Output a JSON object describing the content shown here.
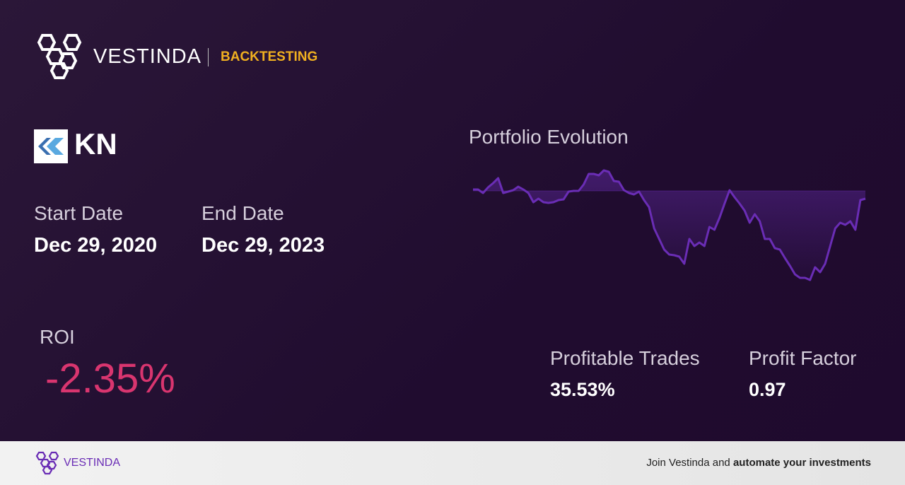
{
  "header": {
    "brand": "VESTINDA",
    "section": "BACKTESTING"
  },
  "ticker": "KN",
  "start_date": {
    "label": "Start Date",
    "value": "Dec 29, 2020"
  },
  "end_date": {
    "label": "End Date",
    "value": "Dec 29, 2023"
  },
  "roi": {
    "label": "ROI",
    "value": "-2.35%"
  },
  "stats": [
    {
      "label": "Profitable Trades",
      "value": "35.53%"
    },
    {
      "label": "Profit Factor",
      "value": "0.97"
    }
  ],
  "footer": {
    "brand": "VESTINDA",
    "text": "Join Vestinda and",
    "bold": "automate your investments"
  },
  "chart_data": {
    "type": "line",
    "title": "Portfolio Evolution",
    "color": "#6a2db5",
    "ylim": [
      -130,
      40
    ],
    "values": [
      2,
      2,
      -3,
      5,
      11,
      18,
      -3,
      -1,
      1,
      6,
      2,
      -3,
      -16,
      -11,
      -16,
      -17,
      -16,
      -13,
      -12,
      -1,
      0,
      0,
      9,
      24,
      24,
      22,
      29,
      27,
      14,
      13,
      1,
      -3,
      -5,
      -1,
      -13,
      -23,
      -53,
      -68,
      -83,
      -90,
      -91,
      -93,
      -103,
      -68,
      -78,
      -73,
      -78,
      -51,
      -55,
      -38,
      -18,
      1,
      -9,
      -18,
      -28,
      -45,
      -33,
      -43,
      -68,
      -68,
      -81,
      -83,
      -95,
      -106,
      -118,
      -123,
      -123,
      -126,
      -108,
      -115,
      -103,
      -78,
      -53,
      -45,
      -48,
      -43,
      -55,
      -13,
      -11
    ]
  }
}
